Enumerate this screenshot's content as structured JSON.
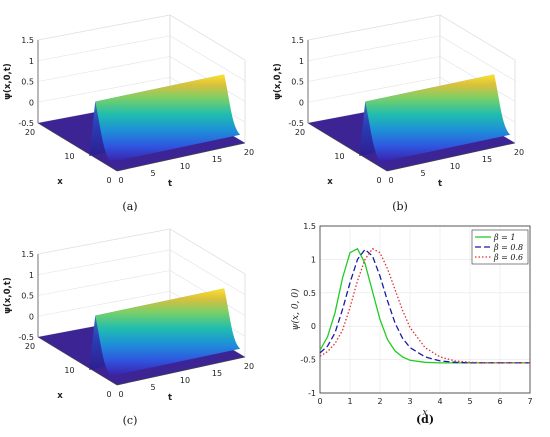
{
  "chart_data": [
    {
      "type": "surface3d",
      "panel": "a",
      "caption": "(a)",
      "zlabel": "ψ(x,0,t)",
      "xlabel": "x",
      "tlabel": "t",
      "zticks": [
        "-0.5",
        "0",
        "0.5",
        "1",
        "1.5"
      ],
      "xticks": [
        "20",
        "10",
        "0"
      ],
      "tticks": [
        "0",
        "5",
        "10",
        "15",
        "20"
      ],
      "zlim": [
        -0.5,
        1.5
      ],
      "xlim": [
        0,
        20
      ],
      "tlim": [
        0,
        20
      ],
      "colormap": "parula",
      "description_values": {
        "peak": 1.18,
        "baseline": -0.55
      }
    },
    {
      "type": "surface3d",
      "panel": "b",
      "caption": "(b)",
      "zlabel": "ψ(x,0,t)",
      "xlabel": "x",
      "tlabel": "t",
      "zticks": [
        "-0.5",
        "0",
        "0.5",
        "1",
        "1.5"
      ],
      "xticks": [
        "20",
        "10",
        "0"
      ],
      "tticks": [
        "0",
        "5",
        "10",
        "15",
        "20"
      ],
      "zlim": [
        -0.5,
        1.5
      ],
      "xlim": [
        0,
        20
      ],
      "tlim": [
        0,
        20
      ],
      "colormap": "parula",
      "description_values": {
        "peak": 1.18,
        "baseline": -0.55
      }
    },
    {
      "type": "surface3d",
      "panel": "c",
      "caption": "(c)",
      "zlabel": "ψ(x,0,t)",
      "xlabel": "x",
      "tlabel": "t",
      "zticks": [
        "-0.5",
        "0",
        "0.5",
        "1",
        "1.5"
      ],
      "xticks": [
        "20",
        "10",
        "0"
      ],
      "tticks": [
        "0",
        "5",
        "10",
        "15",
        "20"
      ],
      "zlim": [
        -0.5,
        1.5
      ],
      "xlim": [
        0,
        20
      ],
      "tlim": [
        0,
        20
      ],
      "colormap": "parula",
      "description_values": {
        "peak": 1.18,
        "baseline": -0.55
      }
    },
    {
      "type": "line",
      "panel": "d",
      "caption": "(d)",
      "xlabel": "x",
      "ylabel": "ψ(x, 0, 0)",
      "xlim": [
        0,
        7
      ],
      "ylim": [
        -1,
        1.5
      ],
      "xticks": [
        "0",
        "1",
        "2",
        "3",
        "4",
        "5",
        "6",
        "7"
      ],
      "yticks": [
        "-1",
        "-0.5",
        "0",
        "0.5",
        "1",
        "1.5"
      ],
      "grid": true,
      "legend_position": "top-right",
      "series": [
        {
          "name": "β = 1",
          "color": "#22cc22",
          "dash": "solid",
          "x": [
            0,
            0.25,
            0.5,
            0.75,
            1.0,
            1.25,
            1.5,
            1.75,
            2.0,
            2.25,
            2.5,
            2.75,
            3.0,
            3.5,
            4.0,
            4.5,
            5.0,
            5.5,
            6.0,
            6.5,
            7.0
          ],
          "y": [
            -0.36,
            -0.16,
            0.2,
            0.72,
            1.1,
            1.16,
            0.94,
            0.52,
            0.1,
            -0.2,
            -0.37,
            -0.46,
            -0.51,
            -0.54,
            -0.55,
            -0.55,
            -0.55,
            -0.55,
            -0.55,
            -0.55,
            -0.55
          ]
        },
        {
          "name": "β = 0.8",
          "color": "#1a1aa8",
          "dash": "dashed",
          "x": [
            0,
            0.25,
            0.5,
            0.75,
            1.0,
            1.25,
            1.5,
            1.75,
            2.0,
            2.25,
            2.5,
            2.75,
            3.0,
            3.5,
            4.0,
            4.5,
            5.0,
            5.5,
            6.0,
            6.5,
            7.0
          ],
          "y": [
            -0.4,
            -0.3,
            -0.1,
            0.25,
            0.65,
            1.0,
            1.15,
            1.05,
            0.75,
            0.38,
            0.05,
            -0.18,
            -0.32,
            -0.46,
            -0.52,
            -0.54,
            -0.55,
            -0.55,
            -0.55,
            -0.55,
            -0.55
          ]
        },
        {
          "name": "β = 0.6",
          "color": "#e03030",
          "dash": "dotted",
          "x": [
            0,
            0.25,
            0.5,
            0.75,
            1.0,
            1.25,
            1.5,
            1.75,
            2.0,
            2.25,
            2.5,
            2.75,
            3.0,
            3.5,
            4.0,
            4.5,
            5.0,
            5.5,
            6.0,
            6.5,
            7.0
          ],
          "y": [
            -0.45,
            -0.38,
            -0.26,
            -0.06,
            0.28,
            0.68,
            1.0,
            1.16,
            1.1,
            0.86,
            0.55,
            0.24,
            -0.02,
            -0.32,
            -0.46,
            -0.52,
            -0.54,
            -0.55,
            -0.55,
            -0.55,
            -0.55
          ]
        }
      ]
    }
  ]
}
